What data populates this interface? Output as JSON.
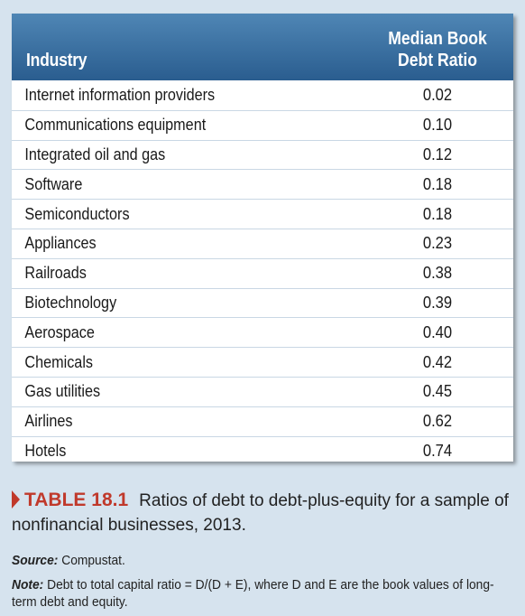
{
  "table": {
    "header": {
      "industry": "Industry",
      "ratio_line1": "Median Book",
      "ratio_line2": "Debt Ratio"
    },
    "rows": [
      {
        "industry": "Internet information providers",
        "value": "0.02"
      },
      {
        "industry": "Communications equipment",
        "value": "0.10"
      },
      {
        "industry": "Integrated oil and gas",
        "value": "0.12"
      },
      {
        "industry": "Software",
        "value": "0.18"
      },
      {
        "industry": "Semiconductors",
        "value": "0.18"
      },
      {
        "industry": "Appliances",
        "value": "0.23"
      },
      {
        "industry": "Railroads",
        "value": "0.38"
      },
      {
        "industry": "Biotechnology",
        "value": "0.39"
      },
      {
        "industry": "Aerospace",
        "value": "0.40"
      },
      {
        "industry": "Chemicals",
        "value": "0.42"
      },
      {
        "industry": "Gas utilities",
        "value": "0.45"
      },
      {
        "industry": "Airlines",
        "value": "0.62"
      },
      {
        "industry": "Hotels",
        "value": "0.74"
      }
    ]
  },
  "caption": {
    "label": "TABLE 18.1",
    "text": "Ratios of debt to debt-plus-equity for a sample of nonfinancial businesses, 2013."
  },
  "source": {
    "label": "Source:",
    "text": "Compustat."
  },
  "note": {
    "label": "Note:",
    "text": "Debt to total capital ratio = D/(D + E), where D and E are the book values of long-term debt and equity."
  },
  "colors": {
    "header_top": "#4f86b5",
    "header_bottom": "#2a5d8f",
    "accent": "#c0392b",
    "background": "#d6e3ee"
  }
}
